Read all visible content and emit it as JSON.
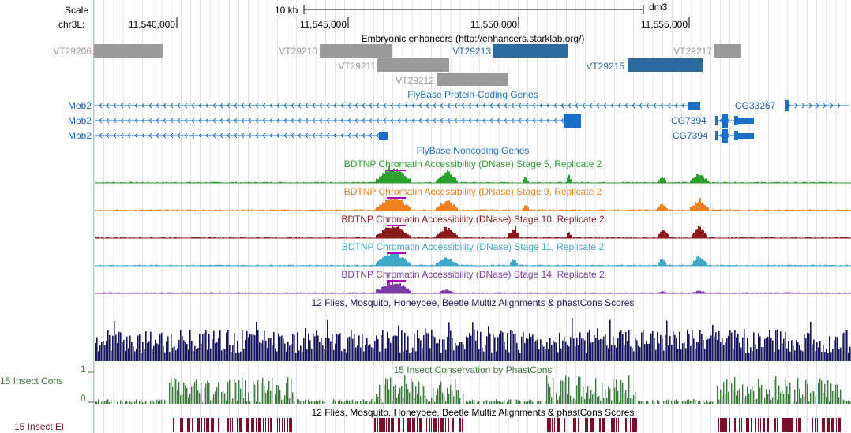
{
  "ruler": {
    "scale_label": "Scale",
    "chrom_label": "chr3L:",
    "scale_bar_text": "10 kb",
    "assembly": "dm3",
    "positions": [
      "11,540,000",
      "11,545,000",
      "11,550,000",
      "11,555,000"
    ]
  },
  "enhancers": {
    "title": "Embryonic enhancers (http://enhancers.starklab.org/)",
    "items": [
      {
        "name": "VT29206",
        "active": false
      },
      {
        "name": "VT29210",
        "active": false
      },
      {
        "name": "VT29211",
        "active": false
      },
      {
        "name": "VT29212",
        "active": false
      },
      {
        "name": "VT29213",
        "active": true
      },
      {
        "name": "VT29215",
        "active": true
      },
      {
        "name": "VT29217",
        "active": false
      }
    ]
  },
  "coding_genes": {
    "title": "FlyBase Protein-Coding Genes",
    "left_labels": [
      "Mob2",
      "Mob2",
      "Mob2"
    ],
    "right_labels": [
      "CG33267",
      "CG7394",
      "CG7394"
    ]
  },
  "noncoding": {
    "title": "FlyBase Noncoding Genes"
  },
  "dnase": [
    {
      "title": "BDTNP Chromatin Accessibility (DNase) Stage 5, Replicate 2",
      "color": "#2ca02c"
    },
    {
      "title": "BDTNP Chromatin Accessibility (DNase) Stage 9, Replicate 2",
      "color": "#f07f1e"
    },
    {
      "title": "BDTNP Chromatin Accessibility (DNase) Stage 10, Replicate 2",
      "color": "#8b1a1a"
    },
    {
      "title": "BDTNP Chromatin Accessibility (DNase) Stage 11, Replicate 2",
      "color": "#3fa9c9"
    },
    {
      "title": "BDTNP Chromatin Accessibility (DNase) Stage 14, Replicate 2",
      "color": "#7b3aa8"
    }
  ],
  "multiz": {
    "title": "12 Flies, Mosquito, Honeybee, Beetle Multiz Alignments & phastCons Scores",
    "color": "#14145a"
  },
  "phastcons": {
    "title": "15 Insect Conservation by PhastCons",
    "side_label": "15 Insect Cons",
    "axis_max": "1",
    "axis_min": "0",
    "color": "#3d7a3d"
  },
  "elements": {
    "title": "12 Flies, Mosquito, Honeybee, Beetle Multiz Alignments & phastCons Scores",
    "side_label": "15 Insect El",
    "color": "#7a0f2a"
  },
  "colors": {
    "enhancer_inactive": "#9a9a9a",
    "enhancer_active": "#2d6aa0",
    "gene": "#1a6fc4",
    "gene_text": "#1a5fb0"
  }
}
